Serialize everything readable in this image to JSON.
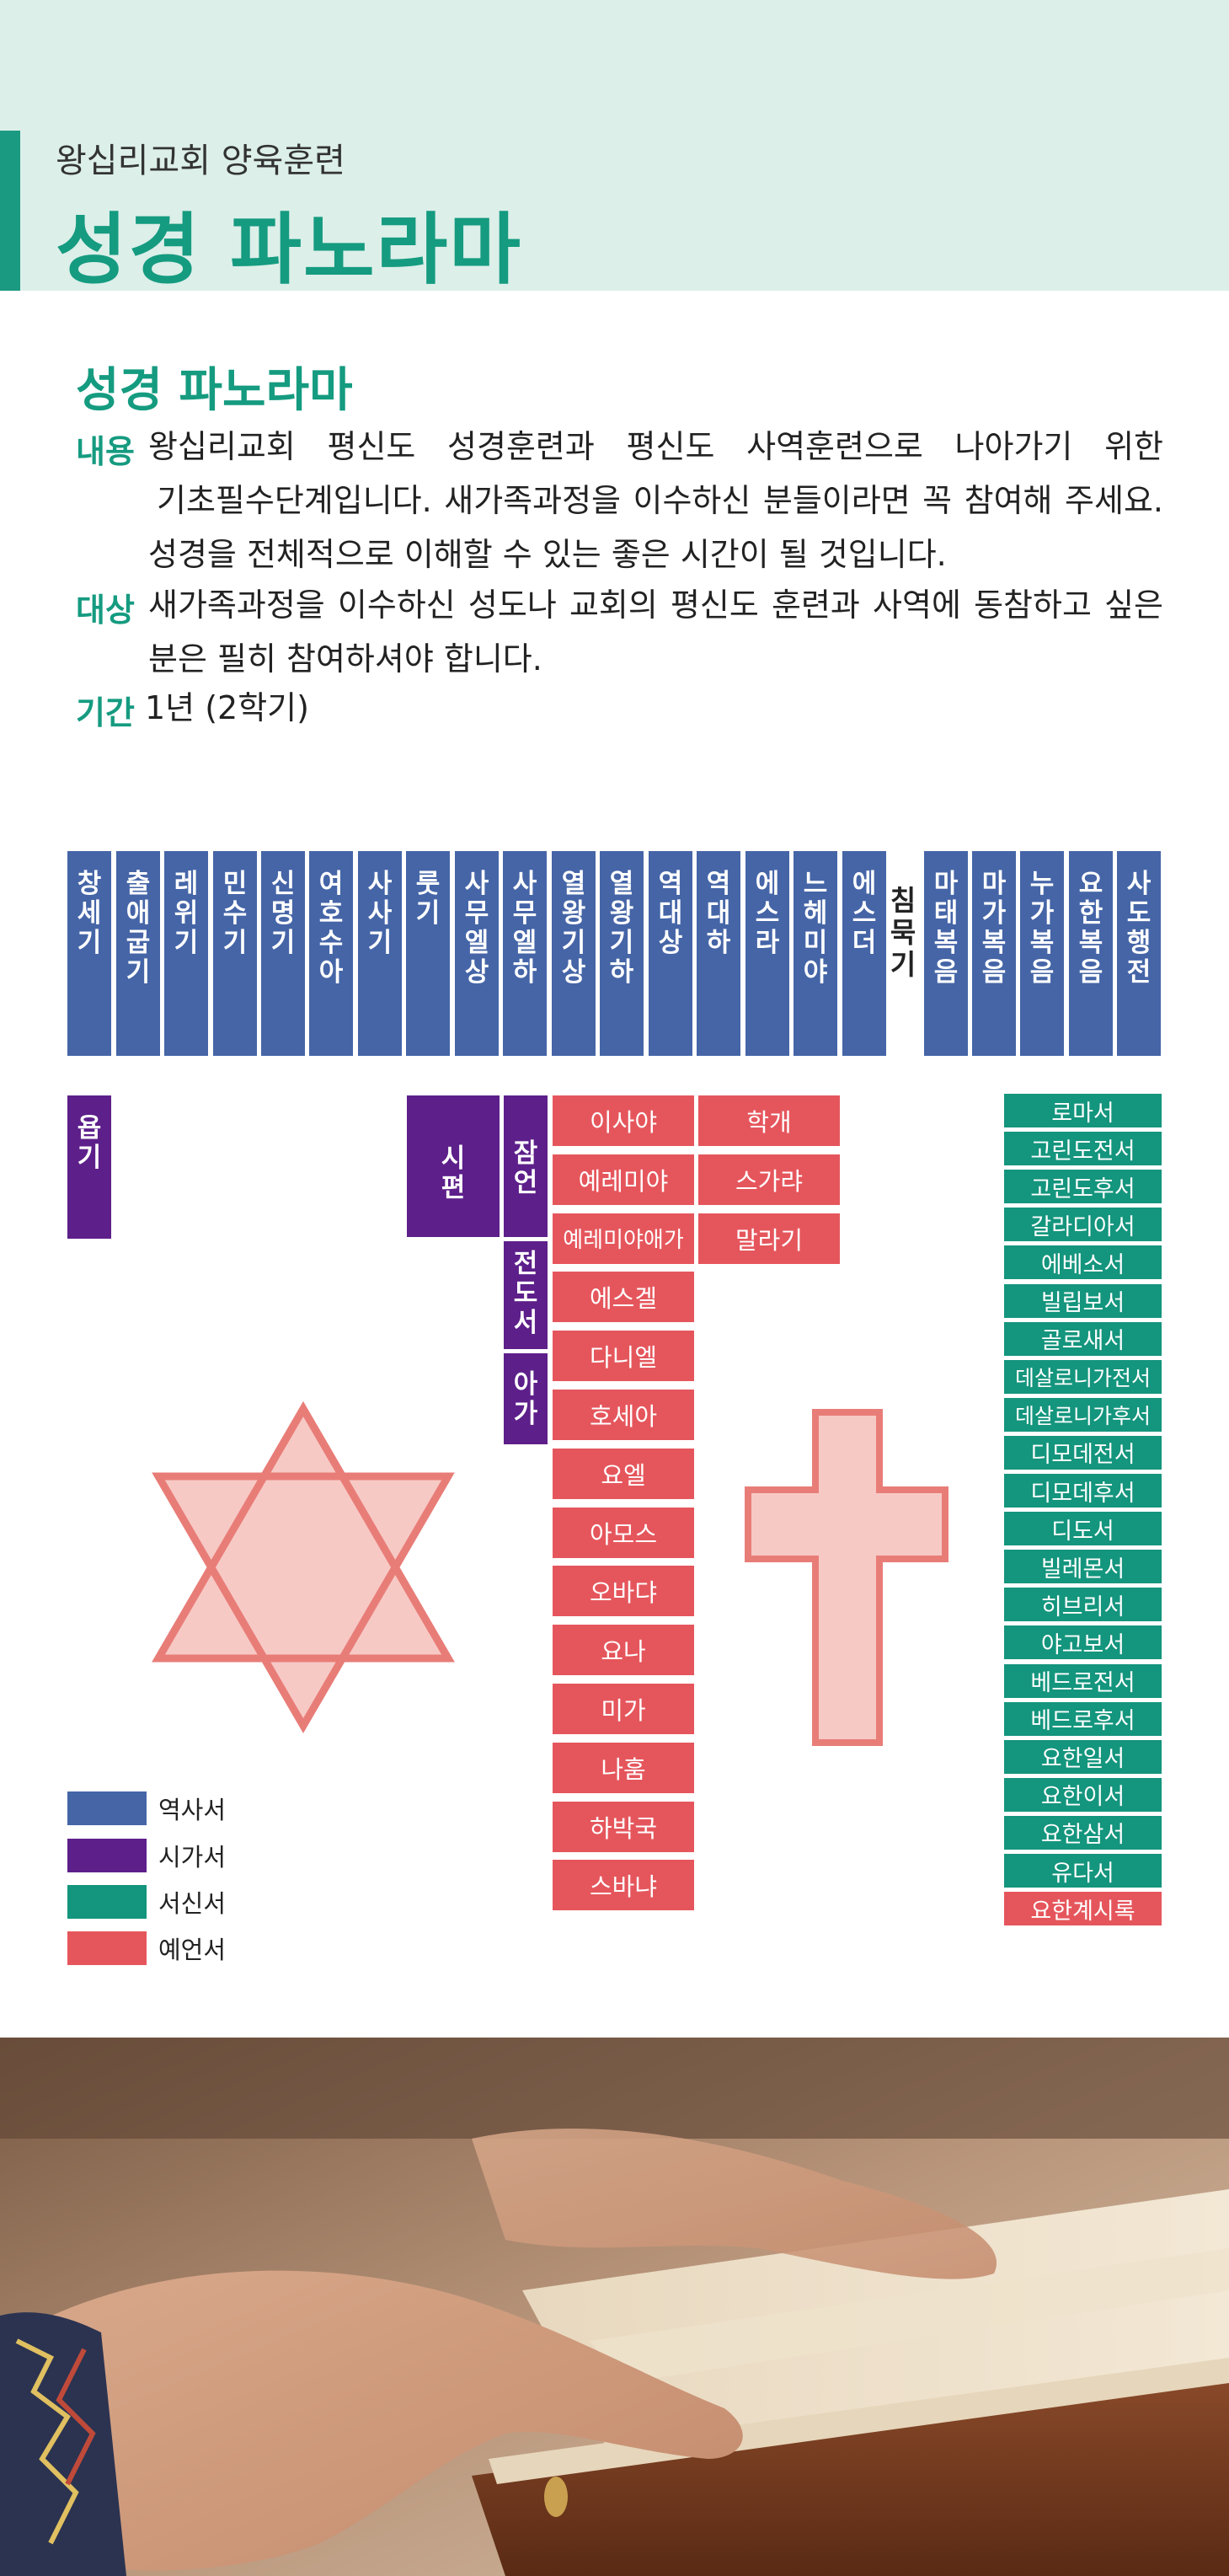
{
  "header": {
    "subtitle": "왕십리교회 양육훈련",
    "title": "성경 파노라마"
  },
  "section": {
    "title": "성경 파노라마",
    "rows": [
      {
        "label": "내용",
        "lines": [
          "왕십리교회 평신도 성경훈련과 평신도 사역훈련으로 나아가기 위한",
          "기초필수단계입니다. 새가족과정을 이수하신 분들이라면 꼭 참여해 주세요.",
          "성경을 전체적으로 이해할 수 있는 좋은 시간이 될 것입니다."
        ]
      },
      {
        "label": "대상",
        "lines": [
          "새가족과정을 이수하신 성도나 교회의 평신도 훈련과 사역에 동참하고 싶은",
          "분은 필히 참여하셔야 합니다."
        ]
      },
      {
        "label": "기간",
        "lines": [
          "1년 (2학기)"
        ]
      }
    ]
  },
  "colors": {
    "history": "#4565a7",
    "poetry": "#5d1f8a",
    "epistle": "#14957d",
    "prophecy": "#e5565c",
    "accent": "#159b80",
    "header_bg": "#dcefe9"
  },
  "history_books": [
    "창세기",
    "출애굽기",
    "레위기",
    "민수기",
    "신명기",
    "여호수아",
    "사사기",
    "룻기",
    "사무엘상",
    "사무엘하",
    "열왕기상",
    "열왕기하",
    "역대상",
    "역대하",
    "에스라",
    "느헤미야",
    "에스더"
  ],
  "standalone": "침묵기",
  "gospels": [
    "마태복음",
    "마가복음",
    "누가복음",
    "요한복음",
    "사도행전"
  ],
  "poetry_books": {
    "job": "욥기",
    "psalms": "시편",
    "proverbs": "잠언",
    "ecclesiastes": "전도서",
    "song": "아가"
  },
  "prophets_col1": [
    "이사야",
    "예레미야",
    "예레미야애가",
    "에스겔",
    "다니엘",
    "호세아",
    "요엘",
    "아모스",
    "오바댜",
    "요나",
    "미가",
    "나훔",
    "하박국",
    "스바냐"
  ],
  "prophets_col2": [
    "학개",
    "스가랴",
    "말라기"
  ],
  "epistles": [
    "로마서",
    "고린도전서",
    "고린도후서",
    "갈라디아서",
    "에베소서",
    "빌립보서",
    "골로새서",
    "데살로니가전서",
    "데살로니가후서",
    "디모데전서",
    "디모데후서",
    "디도서",
    "빌레몬서",
    "히브리서",
    "야고보서",
    "베드로전서",
    "베드로후서",
    "요한일서",
    "요한이서",
    "요한삼서",
    "유다서"
  ],
  "revelation": "요한계시록",
  "legend": [
    {
      "label": "역사서",
      "color": "#4565a7"
    },
    {
      "label": "시가서",
      "color": "#5d1f8a"
    },
    {
      "label": "서신서",
      "color": "#14957d"
    },
    {
      "label": "예언서",
      "color": "#e5565c"
    }
  ],
  "icons": [
    "star-of-david-icon",
    "cross-icon"
  ]
}
